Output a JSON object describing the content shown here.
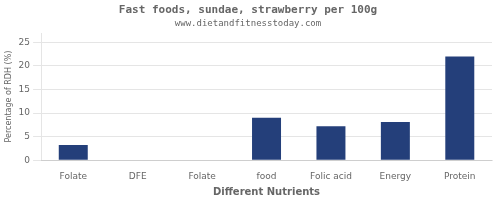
{
  "chart_data": {
    "type": "bar",
    "title": "Fast foods, sundae, strawberry per 100g",
    "subtitle": "www.dietandfitnesstoday.com",
    "xlabel": "Different Nutrients",
    "ylabel": "Percentage of RDH (%)",
    "categories": [
      "Folate",
      "DFE",
      "Folate",
      "food",
      "Folic acid",
      "Energy",
      "Protein"
    ],
    "values": [
      3.2,
      0,
      0,
      9.0,
      7.2,
      8.1,
      22.0
    ],
    "color": "#243f7a",
    "ylim": [
      0,
      27
    ],
    "yticks": [
      0,
      5,
      10,
      15,
      20,
      25
    ],
    "grid": true
  }
}
